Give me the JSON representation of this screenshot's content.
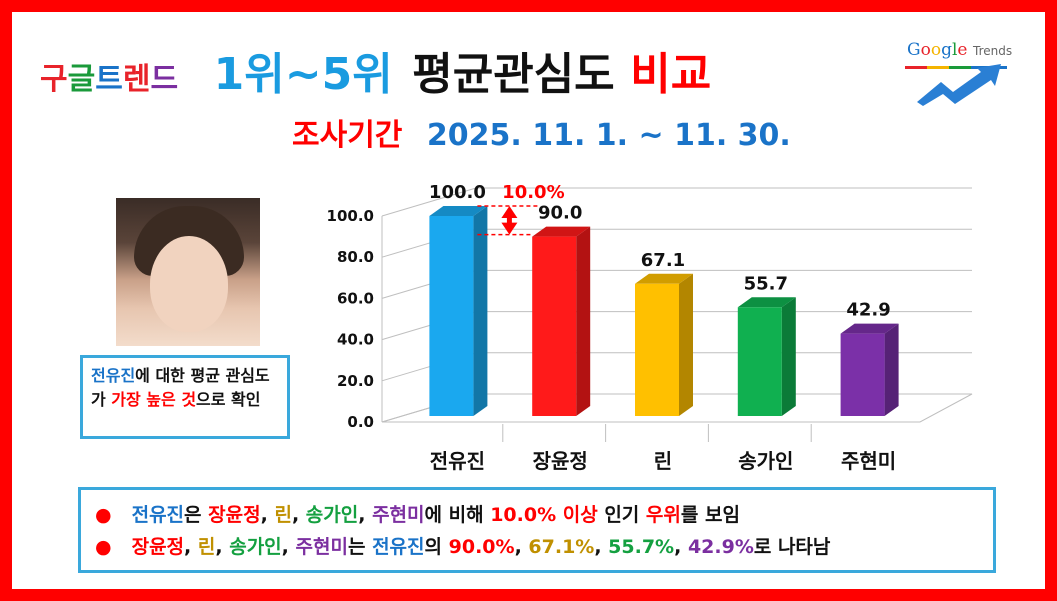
{
  "header": {
    "brand": "구글트렌드",
    "brand_chars": [
      {
        "ch": "구",
        "color": "#e8232a"
      },
      {
        "ch": "글",
        "color": "#1a9a3a"
      },
      {
        "ch": "트",
        "color": "#1a73c8"
      },
      {
        "ch": "렌",
        "color": "#e8232a"
      },
      {
        "ch": "드",
        "color": "#7b2fa0"
      }
    ],
    "rank_label": "1위~5위",
    "title_main": "평균관심도",
    "title_end": "비교",
    "period_label": "조사기간",
    "period_dates": "2025. 11. 1. ~ 11. 30."
  },
  "logo": {
    "google": "Google",
    "trends": "Trends"
  },
  "callout": {
    "p1": "전유진",
    "p2": "에 대한 평균 관심도가 ",
    "p3": "가장 높은 것",
    "p4": "으로 확인"
  },
  "summary": {
    "line1": [
      {
        "t": "전유진",
        "c": "blue"
      },
      {
        "t": "은 ",
        "c": ""
      },
      {
        "t": "장윤정",
        "c": "red"
      },
      {
        "t": ", ",
        "c": ""
      },
      {
        "t": "린",
        "c": "gold"
      },
      {
        "t": ", ",
        "c": ""
      },
      {
        "t": "송가인",
        "c": "green"
      },
      {
        "t": ", ",
        "c": ""
      },
      {
        "t": "주현미",
        "c": "purple"
      },
      {
        "t": "에 비해 ",
        "c": ""
      },
      {
        "t": "10.0% 이상",
        "c": "red"
      },
      {
        "t": " 인기 ",
        "c": ""
      },
      {
        "t": "우위",
        "c": "red"
      },
      {
        "t": "를 보임",
        "c": ""
      }
    ],
    "line2": [
      {
        "t": "장윤정",
        "c": "red"
      },
      {
        "t": ", ",
        "c": ""
      },
      {
        "t": "린",
        "c": "gold"
      },
      {
        "t": ", ",
        "c": ""
      },
      {
        "t": "송가인",
        "c": "green"
      },
      {
        "t": ", ",
        "c": ""
      },
      {
        "t": "주현미",
        "c": "purple"
      },
      {
        "t": "는 ",
        "c": ""
      },
      {
        "t": "전유진",
        "c": "blue"
      },
      {
        "t": "의 ",
        "c": ""
      },
      {
        "t": "90.0%",
        "c": "red"
      },
      {
        "t": ", ",
        "c": ""
      },
      {
        "t": "67.1%",
        "c": "gold"
      },
      {
        "t": ", ",
        "c": ""
      },
      {
        "t": "55.7%",
        "c": "green"
      },
      {
        "t": ", ",
        "c": ""
      },
      {
        "t": "42.9%",
        "c": "purple"
      },
      {
        "t": "로 나타남",
        "c": ""
      }
    ]
  },
  "chart_data": {
    "type": "bar",
    "categories": [
      "전유진",
      "장윤정",
      "린",
      "송가인",
      "주현미"
    ],
    "values": [
      100.0,
      90.0,
      67.1,
      55.7,
      42.9
    ],
    "value_labels": [
      "100.0",
      "90.0",
      "67.1",
      "55.7",
      "42.9"
    ],
    "colors": [
      "#1aa8ef",
      "#ff1a1a",
      "#ffc000",
      "#10b050",
      "#7b30a8"
    ],
    "ylim": [
      0,
      100
    ],
    "yticks": [
      0,
      20,
      40,
      60,
      80,
      100
    ],
    "ytick_labels": [
      "0.0",
      "20.0",
      "40.0",
      "60.0",
      "80.0",
      "100.0"
    ],
    "grid": true,
    "legend": "none",
    "annotation": {
      "text": "10.0%",
      "from_index": 0,
      "to_index": 1
    }
  }
}
